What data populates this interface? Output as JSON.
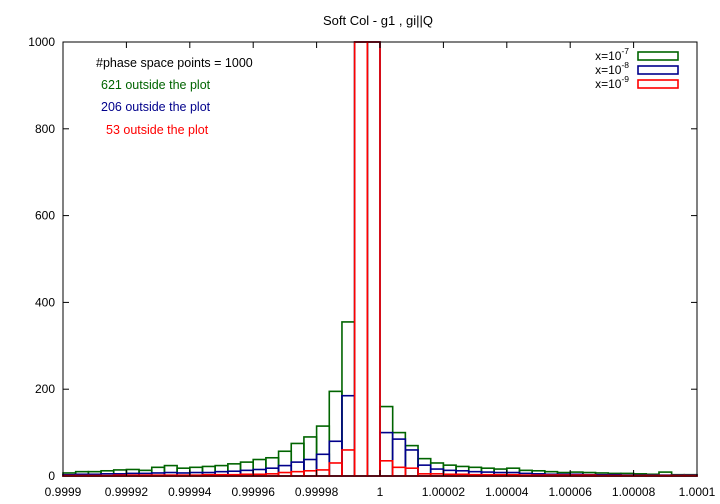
{
  "chart_data": {
    "type": "histogram",
    "title": "Soft  Col - g1 , gi||Q",
    "xlabel": "",
    "ylabel": "",
    "xlim": [
      0.9999,
      1.0001
    ],
    "ylim": [
      0,
      1000
    ],
    "bin_width": 4e-06,
    "grid": false,
    "legend_position": "top-right",
    "x_ticks": [
      "0.9999",
      "0.99992",
      "0.99994",
      "0.99996",
      "0.99998",
      "1",
      "1.00002",
      "1.00004",
      "1.00006",
      "1.00008",
      "1.0001"
    ],
    "x_tick_values": [
      0.9999,
      0.99992,
      0.99994,
      0.99996,
      0.99998,
      1.0,
      1.00002,
      1.00004,
      1.00006,
      1.00008,
      1.0001
    ],
    "y_ticks": [
      "0",
      "200",
      "400",
      "600",
      "800",
      "1000"
    ],
    "y_tick_values": [
      0,
      200,
      400,
      600,
      800,
      1000
    ],
    "annotations": [
      {
        "text": "#phase space points =  1000",
        "color": "#000000"
      },
      {
        "text": "621 outside the plot",
        "color": "#006400"
      },
      {
        "text": "206 outside the plot",
        "color": "#00008b"
      },
      {
        "text": "53 outside the plot",
        "color": "#ff0000"
      }
    ],
    "series": [
      {
        "name": "x=10-7",
        "label_base": "x=10",
        "label_exp": "-7",
        "color": "#006400",
        "values": [
          7,
          10,
          10,
          12,
          14,
          15,
          13,
          20,
          24,
          18,
          20,
          22,
          24,
          28,
          32,
          38,
          42,
          57,
          75,
          90,
          115,
          195,
          355,
          1000,
          1000,
          160,
          100,
          70,
          40,
          30,
          25,
          22,
          20,
          18,
          16,
          18,
          13,
          12,
          10,
          8,
          9,
          8,
          7,
          6,
          6,
          5,
          4,
          9,
          3,
          3
        ]
      },
      {
        "name": "x=10-8",
        "label_base": "x=10",
        "label_exp": "-8",
        "color": "#00008b",
        "values": [
          3,
          4,
          4,
          5,
          5,
          6,
          6,
          7,
          8,
          7,
          8,
          8,
          10,
          11,
          13,
          15,
          18,
          24,
          32,
          38,
          50,
          80,
          185,
          1000,
          1000,
          100,
          85,
          60,
          25,
          16,
          13,
          12,
          10,
          9,
          8,
          8,
          6,
          5,
          4,
          4,
          4,
          3,
          3,
          3,
          2,
          2,
          2,
          2,
          2,
          2
        ]
      },
      {
        "name": "x=10-9",
        "label_base": "x=10",
        "label_exp": "-9",
        "color": "#ff0000",
        "values": [
          1,
          1,
          1,
          1,
          2,
          2,
          2,
          2,
          2,
          2,
          2,
          3,
          3,
          3,
          4,
          4,
          5,
          8,
          10,
          12,
          14,
          30,
          60,
          1000,
          1000,
          35,
          20,
          18,
          5,
          5,
          4,
          4,
          3,
          3,
          3,
          3,
          2,
          2,
          2,
          2,
          2,
          2,
          1,
          1,
          1,
          1,
          1,
          1,
          1,
          1
        ]
      }
    ]
  }
}
